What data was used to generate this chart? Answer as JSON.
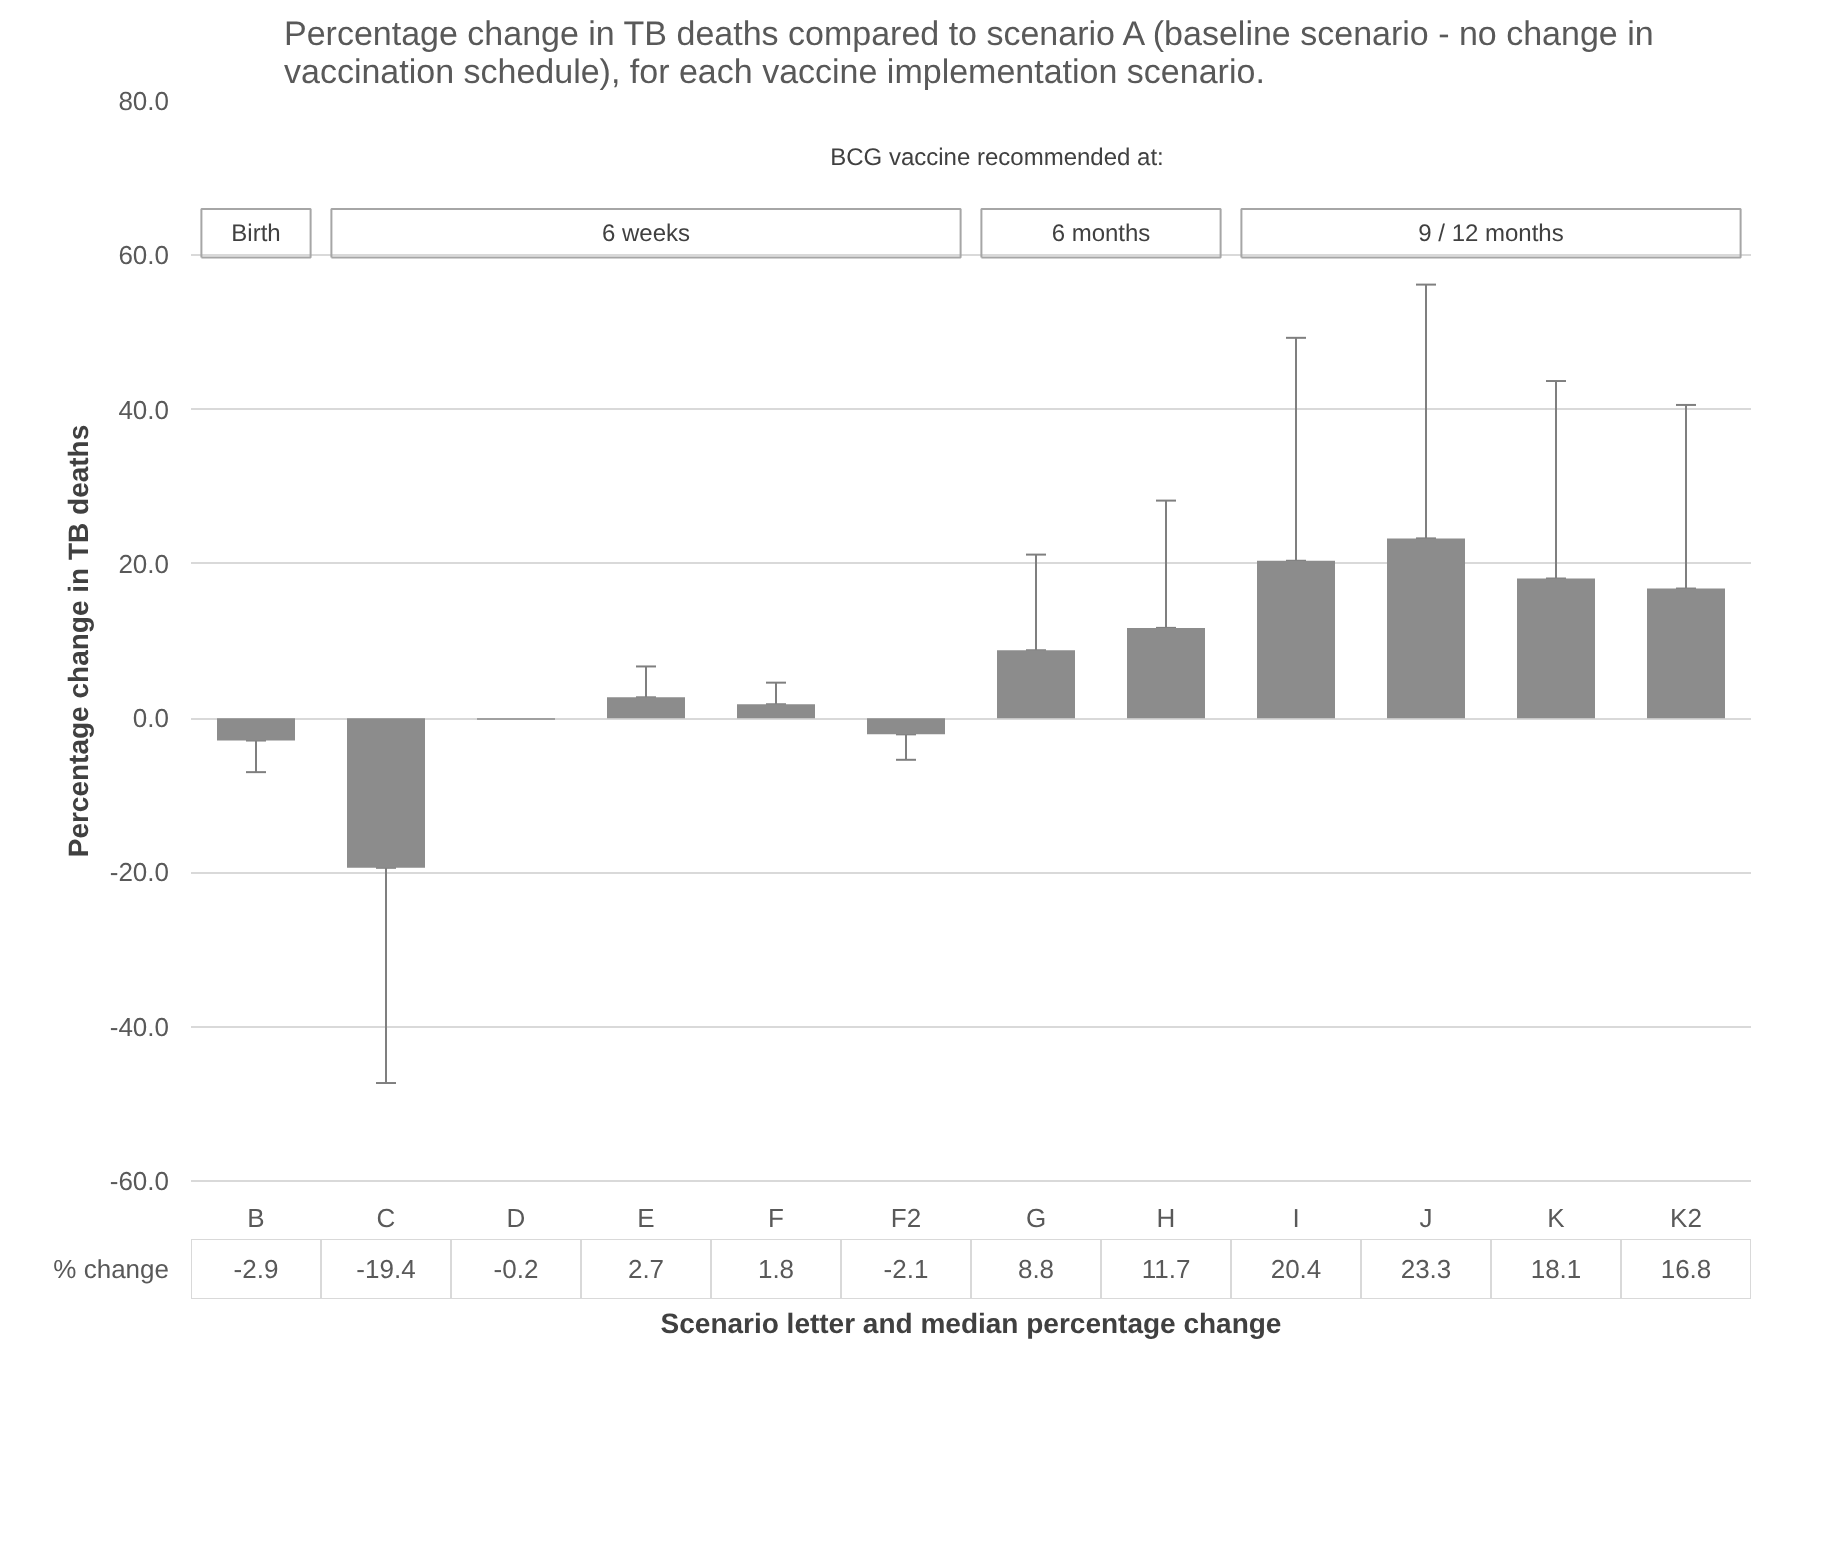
{
  "chart_data": {
    "type": "bar",
    "title": "Percentage change in TB deaths compared to scenario A (baseline scenario - no change in vaccination schedule), for each vaccine implementation scenario.",
    "xlabel": "Scenario letter and median percentage change",
    "ylabel": "Percentage change in TB deaths",
    "categories": [
      "B",
      "C",
      "D",
      "E",
      "F",
      "F2",
      "G",
      "H",
      "I",
      "J",
      "K",
      "K2"
    ],
    "values": [
      -2.9,
      -19.4,
      -0.2,
      2.7,
      1.8,
      -2.1,
      8.8,
      11.7,
      20.4,
      23.3,
      18.1,
      16.8
    ],
    "errors": [
      [
        -7.0,
        -2.9
      ],
      [
        -47.3,
        -19.4
      ],
      null,
      [
        2.7,
        6.7
      ],
      [
        1.8,
        4.6
      ],
      [
        -5.4,
        -2.1
      ],
      [
        8.8,
        21.2
      ],
      [
        11.7,
        28.2
      ],
      [
        20.4,
        49.3
      ],
      [
        23.3,
        56.2
      ],
      [
        18.1,
        43.7
      ],
      [
        16.8,
        40.6
      ]
    ],
    "color": "#8c8c8c",
    "data_labels": true,
    "ylim": [
      -60,
      80
    ],
    "yticks": [
      {
        "value": -60,
        "label": "-60.0"
      },
      {
        "value": -40,
        "label": "-40.0"
      },
      {
        "value": -20,
        "label": "-20.0"
      },
      {
        "value": 0,
        "label": "0.0"
      },
      {
        "value": 20,
        "label": "20.0"
      },
      {
        "value": 40,
        "label": "40.0"
      },
      {
        "value": 60,
        "label": "60.0"
      },
      {
        "value": 80,
        "label": "80.0"
      }
    ],
    "grid": "y",
    "annotations": [
      "BCG vaccine recommended at:",
      "Birth",
      "6 weeks",
      "6 months",
      "9 / 12 months",
      "% change"
    ]
  }
}
